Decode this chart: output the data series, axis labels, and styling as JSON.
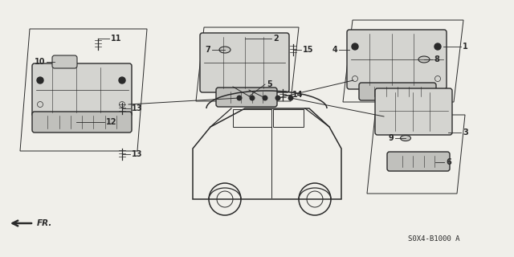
{
  "bg_color": "#f0efea",
  "line_color": "#2a2a2a",
  "part_number": "S0X4-B1000 A",
  "figsize": [
    6.4,
    3.2
  ],
  "dpi": 100
}
